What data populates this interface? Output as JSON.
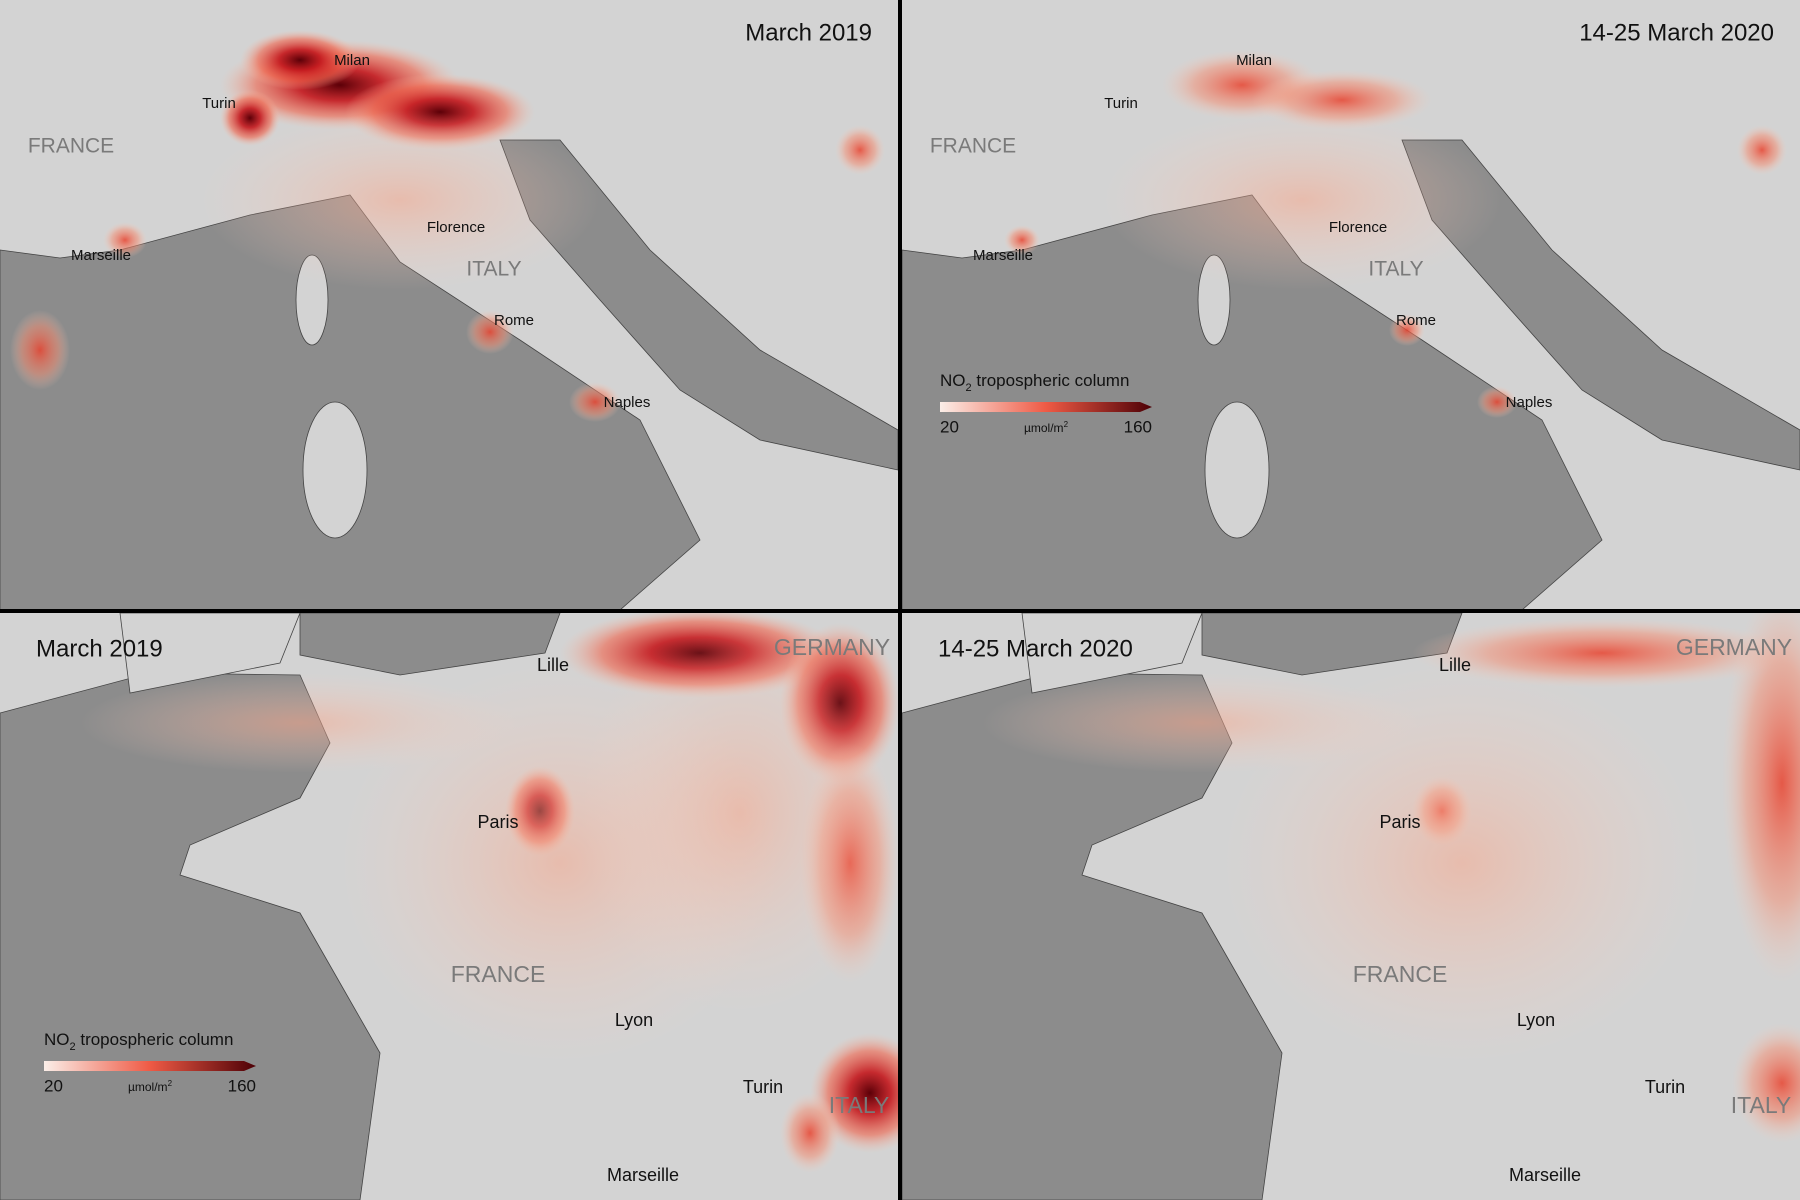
{
  "panels": [
    {
      "title": "March 2019",
      "labels": [
        "Milan",
        "Turin",
        "FRANCE",
        "Florence",
        "Marseille",
        "ITALY",
        "Rome",
        "Naples"
      ]
    },
    {
      "title": "14-25 March 2020",
      "labels": [
        "Milan",
        "Turin",
        "FRANCE",
        "Florence",
        "Marseille",
        "ITALY",
        "Rome",
        "Naples"
      ],
      "legend": {
        "title_main": "NO",
        "title_sub": "2",
        "title_rest": " tropospheric column",
        "min": 20,
        "unit_main": "µmol/m",
        "unit_sup": "2",
        "max": 160
      }
    },
    {
      "title": "March 2019",
      "labels": [
        "Lille",
        "GERMANY",
        "Paris",
        "FRANCE",
        "Lyon",
        "Turin",
        "ITALY",
        "Marseille"
      ],
      "legend": {
        "title_main": "NO",
        "title_sub": "2",
        "title_rest": " tropospheric column",
        "min": 20,
        "unit_main": "µmol/m",
        "unit_sup": "2",
        "max": 160
      }
    },
    {
      "title": "14-25 March 2020",
      "labels": [
        "Lille",
        "GERMANY",
        "Paris",
        "FRANCE",
        "Lyon",
        "Turin",
        "ITALY",
        "Marseille"
      ]
    }
  ]
}
